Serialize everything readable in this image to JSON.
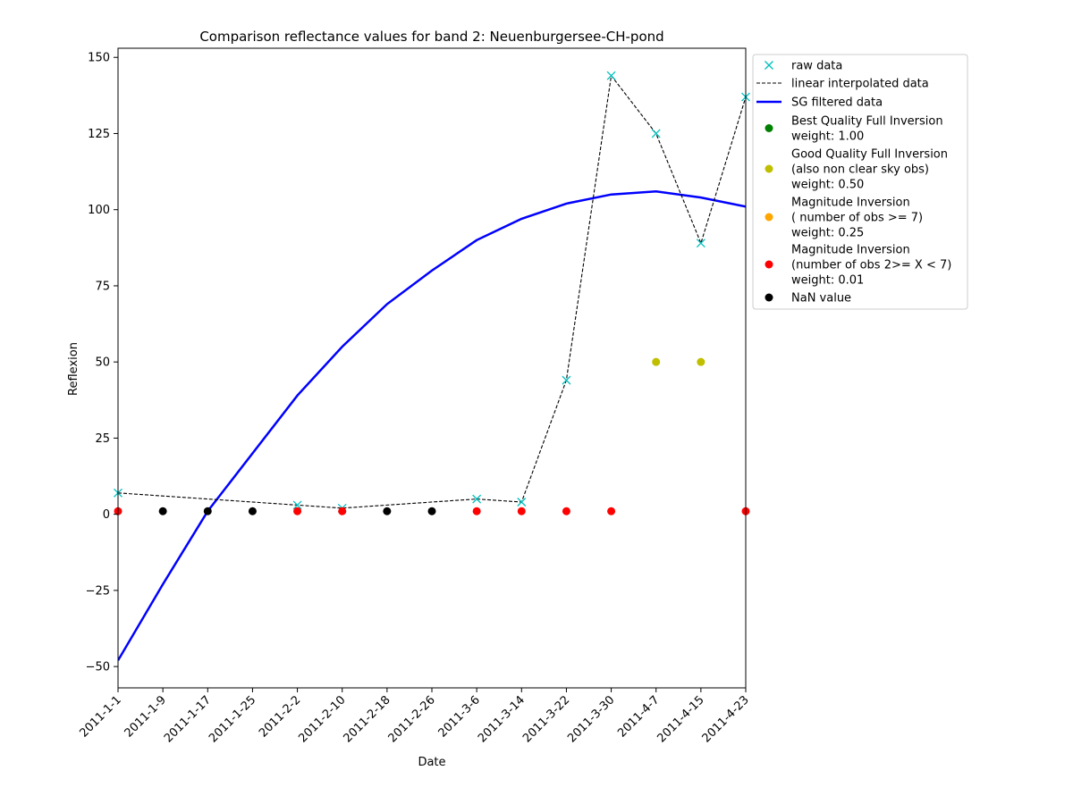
{
  "chart_data": {
    "type": "line",
    "title": "Comparison reflectance values for band 2: Neuenburgersee-CH-pond",
    "xlabel": "Date",
    "ylabel": "Reflexion",
    "x": [
      "2011-1-1",
      "2011-1-9",
      "2011-1-17",
      "2011-1-25",
      "2011-2-2",
      "2011-2-10",
      "2011-2-18",
      "2011-2-26",
      "2011-3-6",
      "2011-3-14",
      "2011-3-22",
      "2011-3-30",
      "2011-4-7",
      "2011-4-15",
      "2011-4-23"
    ],
    "ylim": [
      -57,
      153
    ],
    "yticks": [
      -50,
      -25,
      0,
      25,
      50,
      75,
      100,
      125,
      150
    ],
    "grid": false,
    "legend_placement": "outside-upper-right",
    "series": [
      {
        "name": "raw data",
        "style": "marker-x",
        "color": "#00bfbf",
        "points": [
          [
            0,
            7
          ],
          [
            4,
            3
          ],
          [
            5,
            2
          ],
          [
            8,
            5
          ],
          [
            9,
            4
          ],
          [
            10,
            44
          ],
          [
            11,
            144
          ],
          [
            12,
            125
          ],
          [
            13,
            89
          ],
          [
            14,
            137
          ]
        ]
      },
      {
        "name": "linear interpolated data",
        "style": "dashed",
        "color": "#000000",
        "points": [
          [
            0,
            7
          ],
          [
            4,
            3
          ],
          [
            5,
            2
          ],
          [
            8,
            5
          ],
          [
            9,
            4
          ],
          [
            10,
            44
          ],
          [
            11,
            144
          ],
          [
            12,
            125
          ],
          [
            13,
            89
          ],
          [
            14,
            137
          ]
        ]
      },
      {
        "name": "SG filtered data",
        "style": "solid",
        "color": "#0000ff",
        "values": [
          -48,
          -23,
          1,
          20,
          39,
          55,
          69,
          80,
          90,
          97,
          102,
          105,
          106,
          104,
          101
        ]
      },
      {
        "name": "Best Quality Full Inversion\nweight: 1.00",
        "style": "dot",
        "color": "#008000",
        "points": []
      },
      {
        "name": "Good Quality Full Inversion\n(also non clear sky obs)\nweight: 0.50",
        "style": "dot",
        "color": "#bfbf00",
        "points": [
          [
            12,
            50
          ],
          [
            13,
            50
          ]
        ]
      },
      {
        "name": "Magnitude Inversion\n( number of obs >= 7)\nweight: 0.25",
        "style": "dot",
        "color": "#ffa500",
        "points": []
      },
      {
        "name": "Magnitude Inversion\n(number of obs 2>= X < 7)\nweight: 0.01",
        "style": "dot",
        "color": "#ff0000",
        "points": [
          [
            0,
            1
          ],
          [
            4,
            1
          ],
          [
            5,
            1
          ],
          [
            8,
            1
          ],
          [
            9,
            1
          ],
          [
            10,
            1
          ],
          [
            11,
            1
          ],
          [
            14,
            1
          ]
        ]
      },
      {
        "name": "NaN value",
        "style": "dot",
        "color": "#000000",
        "points": [
          [
            1,
            1
          ],
          [
            2,
            1
          ],
          [
            3,
            1
          ],
          [
            6,
            1
          ],
          [
            7,
            1
          ]
        ]
      }
    ]
  }
}
